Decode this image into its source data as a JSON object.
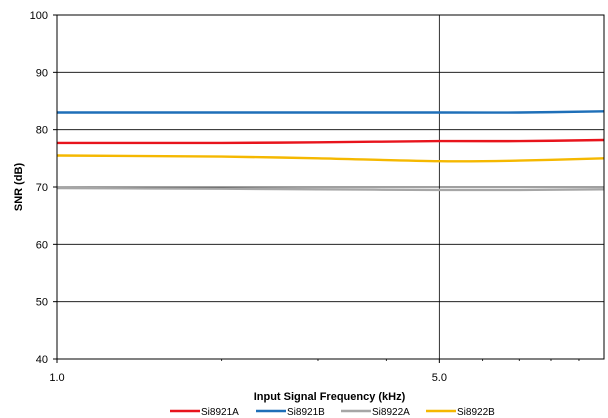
{
  "chart_data": {
    "type": "line",
    "x_scale": "log",
    "xlabel": "Input Signal Frequency (kHz)",
    "ylabel": "SNR (dB)",
    "xlim": [
      1.0,
      10.0
    ],
    "ylim": [
      40,
      100
    ],
    "x_ticks": [
      1.0,
      5.0
    ],
    "x_tick_labels": [
      "1.0",
      "5.0"
    ],
    "y_ticks": [
      40,
      50,
      60,
      70,
      80,
      90,
      100
    ],
    "y_tick_labels": [
      "40",
      "50",
      "60",
      "70",
      "80",
      "90",
      "100"
    ],
    "grid": "major",
    "legend_position": "bottom",
    "x": [
      1.0,
      2.0,
      3.0,
      5.0,
      7.0,
      10.0
    ],
    "series": [
      {
        "name": "Si8921A",
        "color": "#e8141c",
        "values": [
          77.7,
          77.7,
          77.8,
          78.0,
          78.0,
          78.2
        ]
      },
      {
        "name": "Si8921B",
        "color": "#1e6fb8",
        "values": [
          83.0,
          83.0,
          83.0,
          83.0,
          83.0,
          83.2
        ]
      },
      {
        "name": "Si8922A",
        "color": "#a6a6a6",
        "values": [
          69.8,
          69.7,
          69.6,
          69.5,
          69.5,
          69.6
        ]
      },
      {
        "name": "Si8922B",
        "color": "#f5b800",
        "values": [
          75.5,
          75.3,
          75.0,
          74.5,
          74.6,
          75.0
        ]
      }
    ]
  }
}
